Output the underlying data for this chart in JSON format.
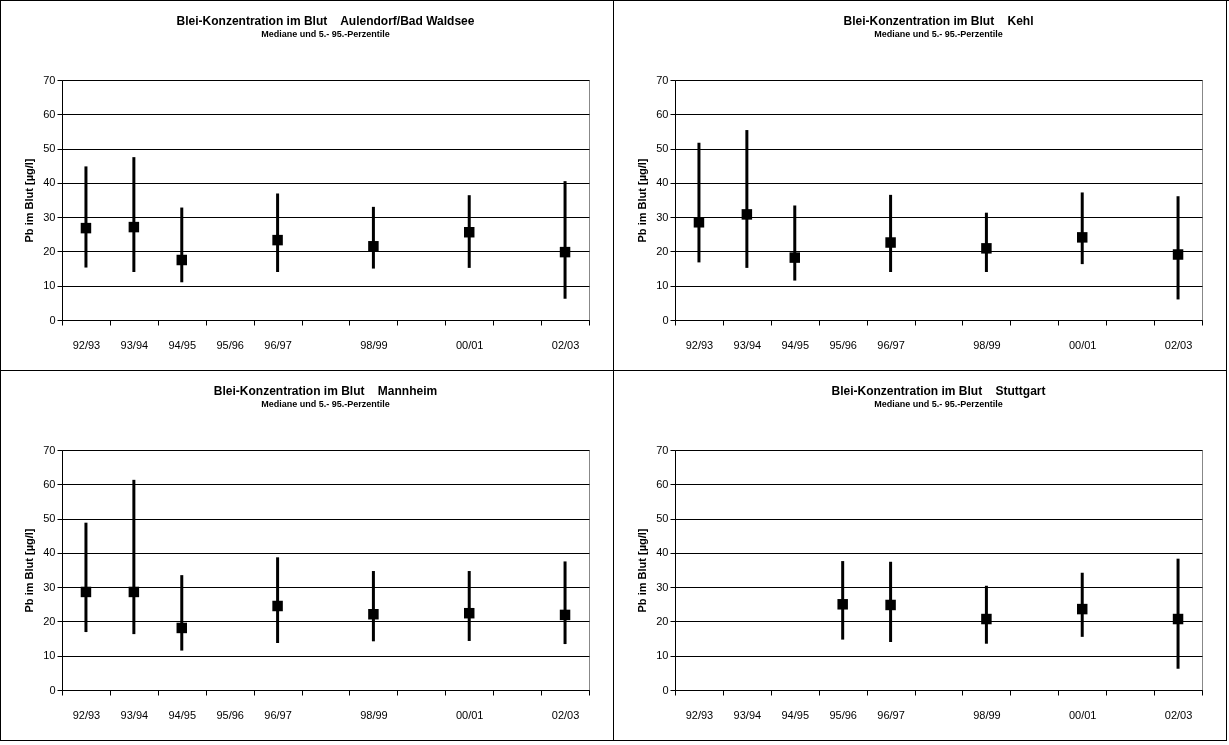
{
  "chart_data": [
    {
      "type": "scatter",
      "title": "Blei-Konzentration im Blut    Aulendorf/Bad Waldsee",
      "subtitle": "Mediane und 5.- 95.-Perzentile",
      "ylabel": "Pb im Blut [µg/l]",
      "categories": [
        "92/93",
        "93/94",
        "94/95",
        "95/96",
        "96/97",
        null,
        "98/99",
        null,
        "00/01",
        null,
        "02/03"
      ],
      "series": [
        {
          "color": "#000000",
          "values": [
            26.8,
            27.1,
            17.5,
            null,
            23.3,
            null,
            21.5,
            null,
            25.6,
            null,
            19.8
          ],
          "errors": [
            [
              15.3,
              44.8
            ],
            [
              14,
              47.5
            ],
            [
              11,
              32.8
            ],
            null,
            [
              14,
              36.9
            ],
            null,
            [
              15,
              33
            ],
            null,
            [
              15.2,
              36.4
            ],
            null,
            [
              6.2,
              40.5
            ]
          ]
        }
      ],
      "ylim": [
        0,
        70
      ],
      "yticks": [
        0,
        10,
        20,
        30,
        40,
        50,
        60,
        70
      ],
      "grid": "y",
      "marker": "square"
    },
    {
      "type": "scatter",
      "title": "Blei-Konzentration im Blut    Kehl",
      "subtitle": "Mediane und 5.- 95.-Perzentile",
      "ylabel": "Pb im Blut [µg/l]",
      "categories": [
        "92/93",
        "93/94",
        "94/95",
        "95/96",
        "96/97",
        null,
        "98/99",
        null,
        "00/01",
        null,
        "02/03"
      ],
      "series": [
        {
          "color": "#000000",
          "values": [
            28.5,
            30.8,
            18.2,
            null,
            22.6,
            null,
            20.9,
            null,
            24.1,
            null,
            19.1
          ],
          "errors": [
            [
              16.8,
              51.7
            ],
            [
              15.2,
              55.4
            ],
            [
              11.5,
              33.4
            ],
            null,
            [
              14,
              36.5
            ],
            null,
            [
              14,
              31.3
            ],
            null,
            [
              16.3,
              37.2
            ],
            null,
            [
              6,
              36.1
            ]
          ]
        }
      ],
      "ylim": [
        0,
        70
      ],
      "yticks": [
        0,
        10,
        20,
        30,
        40,
        50,
        60,
        70
      ],
      "grid": "y",
      "marker": "square"
    },
    {
      "type": "scatter",
      "title": "Blei-Konzentration im Blut    Mannheim",
      "subtitle": "Mediane und 5.- 95.-Perzentile",
      "ylabel": "Pb im Blut [µg/l]",
      "categories": [
        "92/93",
        "93/94",
        "94/95",
        "95/96",
        "96/97",
        null,
        "98/99",
        null,
        "00/01",
        null,
        "02/03"
      ],
      "series": [
        {
          "color": "#000000",
          "values": [
            28.6,
            28.6,
            18.1,
            null,
            24.5,
            null,
            22.1,
            null,
            22.4,
            null,
            21.9
          ],
          "errors": [
            [
              16.9,
              48.8
            ],
            [
              16.3,
              61.3
            ],
            [
              11.5,
              33.5
            ],
            null,
            [
              13.7,
              38.7
            ],
            null,
            [
              14.2,
              34.7
            ],
            null,
            [
              14.3,
              34.7
            ],
            null,
            [
              13.4,
              37.5
            ]
          ]
        }
      ],
      "ylim": [
        0,
        70
      ],
      "yticks": [
        0,
        10,
        20,
        30,
        40,
        50,
        60,
        70
      ],
      "grid": "y",
      "marker": "square"
    },
    {
      "type": "scatter",
      "title": "Blei-Konzentration im Blut    Stuttgart",
      "subtitle": "Mediane und 5.- 95.-Perzentile",
      "ylabel": "Pb im Blut [µg/l]",
      "categories": [
        "92/93",
        "93/94",
        "94/95",
        "95/96",
        "96/97",
        null,
        "98/99",
        null,
        "00/01",
        null,
        "02/03"
      ],
      "series": [
        {
          "color": "#000000",
          "values": [
            null,
            null,
            null,
            25,
            24.8,
            null,
            20.7,
            null,
            23.6,
            null,
            20.7
          ],
          "errors": [
            null,
            null,
            null,
            [
              14.7,
              37.6
            ],
            [
              14,
              37.4
            ],
            null,
            [
              13.5,
              30.4
            ],
            null,
            [
              15.5,
              34.2
            ],
            null,
            [
              6.2,
              38.3
            ]
          ]
        }
      ],
      "ylim": [
        0,
        70
      ],
      "yticks": [
        0,
        10,
        20,
        30,
        40,
        50,
        60,
        70
      ],
      "grid": "y",
      "marker": "square"
    }
  ]
}
